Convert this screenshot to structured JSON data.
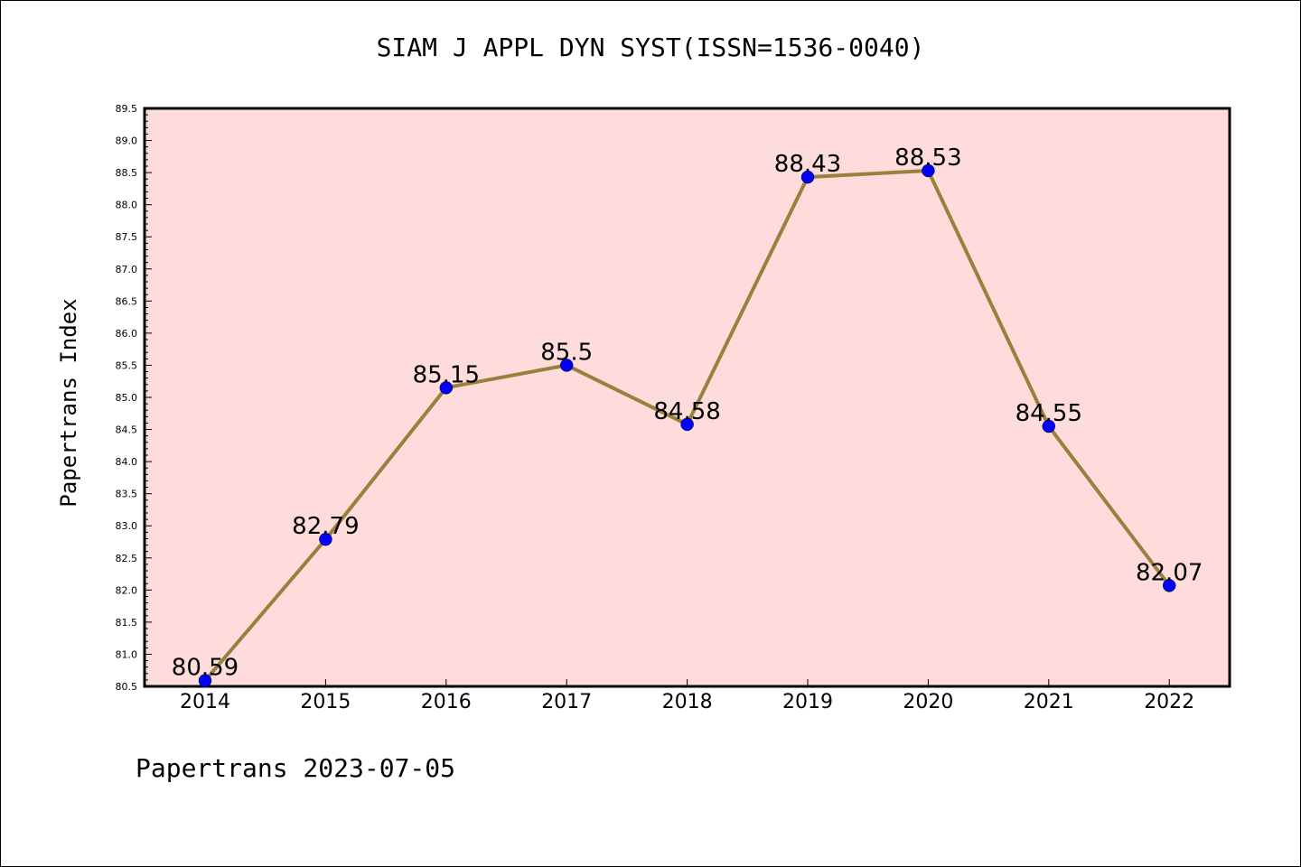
{
  "page": {
    "title": "SIAM J APPL DYN SYST(ISSN=1536-0040)",
    "footer": "Papertrans 2023-07-05"
  },
  "colors": {
    "plot_background": "#fddcdb",
    "line": "#9b7f3d",
    "marker": "#0000ff",
    "axis": "#000000"
  },
  "chart_data": {
    "type": "line",
    "title": "SIAM J APPL DYN SYST(ISSN=1536-0040)",
    "xlabel": "",
    "ylabel": "Papertrans Index",
    "categories": [
      "2014",
      "2015",
      "2016",
      "2017",
      "2018",
      "2019",
      "2020",
      "2021",
      "2022"
    ],
    "series": [
      {
        "values": [
          80.59,
          82.79,
          85.15,
          85.5,
          84.58,
          88.43,
          88.53,
          84.55,
          82.07
        ],
        "data_labels": [
          "80.59",
          "82.79",
          "85.15",
          "85.5",
          "84.58",
          "88.43",
          "88.53",
          "84.55",
          "82.07"
        ]
      }
    ],
    "ylim": [
      80.5,
      89.5
    ],
    "yticks": [
      "80.5",
      "81.0",
      "81.5",
      "82.0",
      "82.5",
      "83.0",
      "83.5",
      "84.0",
      "84.5",
      "85.0",
      "85.5",
      "86.0",
      "86.5",
      "87.0",
      "87.5",
      "88.0",
      "88.5",
      "89.0",
      "89.5"
    ],
    "grid": false,
    "legend": "none",
    "markers": "filled circles"
  }
}
